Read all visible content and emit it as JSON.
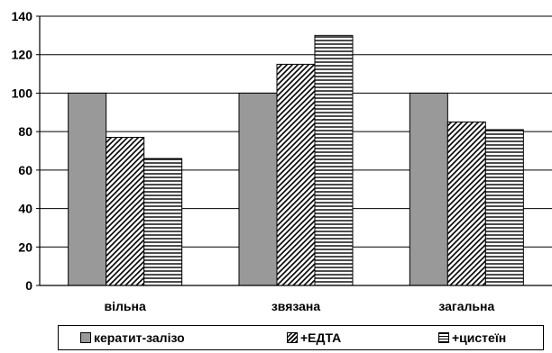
{
  "chart_data": {
    "type": "bar",
    "categories": [
      "вільна",
      "звязана",
      "загальна"
    ],
    "series": [
      {
        "name": "кератит-залізо",
        "values": [
          100,
          100,
          100
        ],
        "pattern": "solid",
        "color": "#999999"
      },
      {
        "name": "+ЕДТА",
        "values": [
          77,
          115,
          85
        ],
        "pattern": "diagonal"
      },
      {
        "name": "+цистеїн",
        "values": [
          66,
          130,
          81
        ],
        "pattern": "horizontal"
      }
    ],
    "ylim": [
      0,
      140
    ],
    "yticks": [
      0,
      20,
      40,
      60,
      80,
      100,
      120,
      140
    ],
    "grid": true,
    "legend_position": "bottom"
  }
}
